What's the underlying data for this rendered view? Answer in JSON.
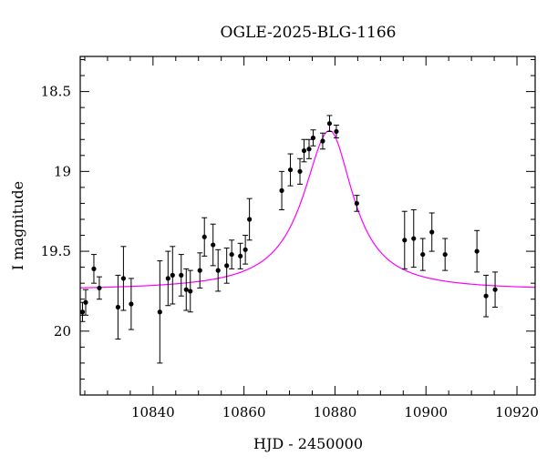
{
  "chart_data": {
    "type": "scatter",
    "title": "OGLE-2025-BLG-1166",
    "xlabel": "HJD - 2450000",
    "ylabel": "I magnitude",
    "xlim": [
      10824,
      10924
    ],
    "ylim": [
      20.4,
      18.28
    ],
    "y_inverted": true,
    "x_ticks": [
      10840,
      10860,
      10880,
      10900,
      10920
    ],
    "x_tick_labels": [
      "10840",
      "10860",
      "10880",
      "10900",
      "10920"
    ],
    "y_ticks": [
      18.5,
      19,
      19.5,
      20
    ],
    "y_tick_labels": [
      "18.5",
      "19",
      "19.5",
      "20"
    ],
    "grid": false,
    "colors": {
      "model": "#ff00ff",
      "points": "#000000"
    },
    "model": {
      "name": "",
      "baseline": 19.745,
      "peak_mag": 18.745,
      "t0": 10878.8,
      "rise_width": 7.0,
      "fall_width": 6.3
    },
    "series": [
      {
        "type": "errorbar",
        "points": [
          {
            "x": 10824.5,
            "y": 19.88,
            "err": 0.06
          },
          {
            "x": 10825.2,
            "y": 19.82,
            "err": 0.08
          },
          {
            "x": 10827.0,
            "y": 19.61,
            "err": 0.09
          },
          {
            "x": 10828.2,
            "y": 19.73,
            "err": 0.07
          },
          {
            "x": 10832.3,
            "y": 19.85,
            "err": 0.2
          },
          {
            "x": 10833.5,
            "y": 19.67,
            "err": 0.2
          },
          {
            "x": 10835.2,
            "y": 19.83,
            "err": 0.16
          },
          {
            "x": 10841.5,
            "y": 19.88,
            "err": 0.32
          },
          {
            "x": 10843.3,
            "y": 19.67,
            "err": 0.17
          },
          {
            "x": 10844.3,
            "y": 19.65,
            "err": 0.18
          },
          {
            "x": 10846.2,
            "y": 19.65,
            "err": 0.13
          },
          {
            "x": 10847.3,
            "y": 19.74,
            "err": 0.13
          },
          {
            "x": 10848.2,
            "y": 19.75,
            "err": 0.13
          },
          {
            "x": 10850.3,
            "y": 19.62,
            "err": 0.11
          },
          {
            "x": 10851.3,
            "y": 19.41,
            "err": 0.12
          },
          {
            "x": 10853.2,
            "y": 19.46,
            "err": 0.13
          },
          {
            "x": 10854.3,
            "y": 19.62,
            "err": 0.13
          },
          {
            "x": 10856.2,
            "y": 19.59,
            "err": 0.11
          },
          {
            "x": 10857.3,
            "y": 19.52,
            "err": 0.09
          },
          {
            "x": 10859.2,
            "y": 19.53,
            "err": 0.08
          },
          {
            "x": 10860.3,
            "y": 19.49,
            "err": 0.09
          },
          {
            "x": 10861.2,
            "y": 19.3,
            "err": 0.13
          },
          {
            "x": 10868.3,
            "y": 19.12,
            "err": 0.12
          },
          {
            "x": 10870.2,
            "y": 18.99,
            "err": 0.1
          },
          {
            "x": 10872.3,
            "y": 19.0,
            "err": 0.08
          },
          {
            "x": 10873.2,
            "y": 18.87,
            "err": 0.07
          },
          {
            "x": 10874.3,
            "y": 18.86,
            "err": 0.06
          },
          {
            "x": 10875.2,
            "y": 18.79,
            "err": 0.05
          },
          {
            "x": 10877.3,
            "y": 18.81,
            "err": 0.05
          },
          {
            "x": 10878.8,
            "y": 18.7,
            "err": 0.05
          },
          {
            "x": 10880.3,
            "y": 18.75,
            "err": 0.04
          },
          {
            "x": 10884.8,
            "y": 19.2,
            "err": 0.05
          },
          {
            "x": 10895.3,
            "y": 19.43,
            "err": 0.18
          },
          {
            "x": 10897.3,
            "y": 19.42,
            "err": 0.18
          },
          {
            "x": 10899.3,
            "y": 19.52,
            "err": 0.1
          },
          {
            "x": 10901.3,
            "y": 19.38,
            "err": 0.12
          },
          {
            "x": 10904.2,
            "y": 19.52,
            "err": 0.1
          },
          {
            "x": 10911.2,
            "y": 19.5,
            "err": 0.13
          },
          {
            "x": 10913.2,
            "y": 19.78,
            "err": 0.13
          },
          {
            "x": 10915.2,
            "y": 19.74,
            "err": 0.11
          }
        ]
      }
    ]
  }
}
